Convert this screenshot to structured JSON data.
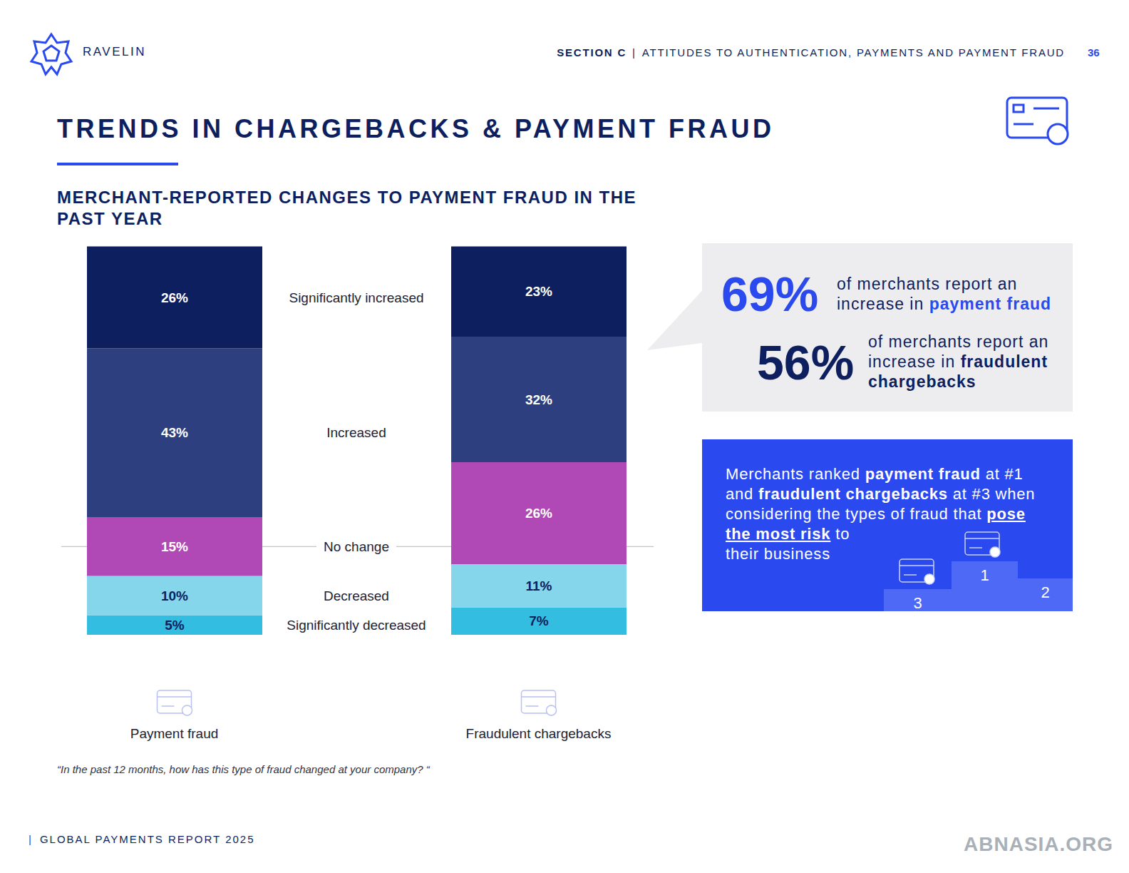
{
  "header": {
    "brand": "RAVELIN",
    "section": "SECTION C",
    "separator": "|",
    "section_title": "ATTITUDES TO AUTHENTICATION, PAYMENTS AND PAYMENT FRAUD",
    "page": "36"
  },
  "chart_data": {
    "type": "bar",
    "title": "TRENDS IN CHARGEBACKS & PAYMENT FRAUD",
    "subtitle": "MERCHANT-REPORTED CHANGES TO PAYMENT FRAUD IN THE PAST YEAR",
    "categories": [
      "Payment fraud",
      "Fraudulent chargebacks"
    ],
    "series": [
      {
        "name": "Significantly decreased",
        "color": "#33bde0",
        "values": [
          5,
          7
        ],
        "value_labels": [
          "5%",
          "7%"
        ]
      },
      {
        "name": "Decreased",
        "color": "#85d6ea",
        "values": [
          10,
          11
        ],
        "value_labels": [
          "10%",
          "11%"
        ]
      },
      {
        "name": "No change",
        "color": "#b048b5",
        "values": [
          15,
          26
        ],
        "value_labels": [
          "15%",
          "26%"
        ]
      },
      {
        "name": "Increased",
        "color": "#2d3f7f",
        "values": [
          43,
          32
        ],
        "value_labels": [
          "43%",
          "32%"
        ]
      },
      {
        "name": "Significantly increased",
        "color": "#0d1f5e",
        "values": [
          26,
          23
        ],
        "value_labels": [
          "26%",
          "23%"
        ]
      }
    ],
    "stacked": true,
    "data_labels": true,
    "tick_labels": "x",
    "grid": false,
    "ylim": [
      0,
      100
    ],
    "annotations": [
      "“In the past 12 months, how has this type of fraud changed at your company? “"
    ]
  },
  "highlights": [
    {
      "value": "69%",
      "parts": [
        {
          "text": "of merchants report an increase in ",
          "style": "plain"
        },
        {
          "text": "payment fraud",
          "style": "bold"
        }
      ]
    },
    {
      "value": "56%",
      "parts": [
        {
          "text": "of merchants report an increase in ",
          "style": "plain"
        },
        {
          "text": "fraudulent chargebacks",
          "style": "bold"
        }
      ]
    }
  ],
  "ranking": {
    "parts": [
      {
        "text": "Merchants ranked ",
        "style": "plain"
      },
      {
        "text": "payment fraud",
        "style": "bold"
      },
      {
        "text": " at #1 and ",
        "style": "plain"
      },
      {
        "text": "fraudulent chargebacks",
        "style": "bold"
      },
      {
        "text": " at #3 when considering the types of fraud that ",
        "style": "plain"
      },
      {
        "text": "pose the most risk",
        "style": "bold underline"
      },
      {
        "text": " to their business",
        "style": "plain"
      }
    ],
    "podium": [
      "3",
      "1",
      "2"
    ]
  },
  "footer": {
    "separator": "|",
    "text": "GLOBAL PAYMENTS REPORT 2025"
  },
  "watermark": "ABNASIA.ORG"
}
